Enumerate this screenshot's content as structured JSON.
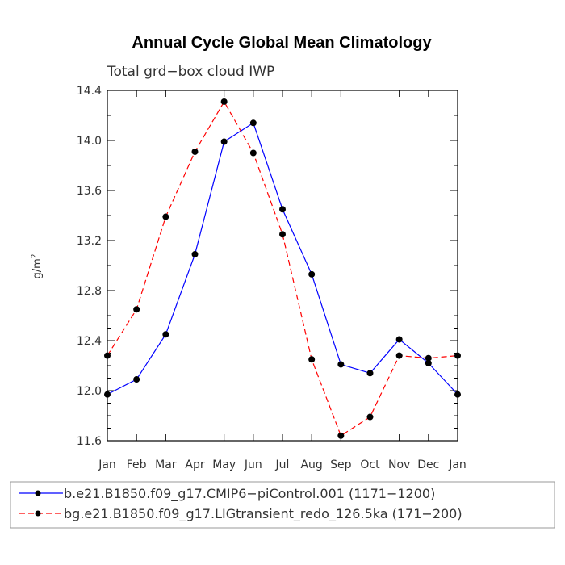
{
  "chart_data": {
    "type": "line",
    "title": "Annual Cycle Global Mean Climatology",
    "subtitle": "Total grd−box cloud IWP",
    "ylabel": "g/m",
    "ylabel_superscript": "2",
    "xlabel": "",
    "categories": [
      "Jan",
      "Feb",
      "Mar",
      "Apr",
      "May",
      "Jun",
      "Jul",
      "Aug",
      "Sep",
      "Oct",
      "Nov",
      "Dec",
      "Jan"
    ],
    "ylim": [
      11.6,
      14.4
    ],
    "yticks": [
      11.6,
      12.0,
      12.4,
      12.8,
      13.2,
      13.6,
      14.0,
      14.4
    ],
    "ytick_labels": [
      "11.6",
      "12.0",
      "12.4",
      "12.8",
      "13.2",
      "13.6",
      "14.0",
      "14.4"
    ],
    "series": [
      {
        "name": "b.e21.B1850.f09_g17.CMIP6−piControl.001 (1171−1200)",
        "color": "#0000ff",
        "dash": "solid",
        "values": [
          11.97,
          12.09,
          12.45,
          13.09,
          13.99,
          14.14,
          13.45,
          12.93,
          12.21,
          12.14,
          12.41,
          12.22,
          11.97
        ]
      },
      {
        "name": "bg.e21.B1850.f09_g17.LIGtransient_redo_126.5ka (171−200)",
        "color": "#ff0000",
        "dash": "dashed",
        "values": [
          12.28,
          12.65,
          13.39,
          13.91,
          14.31,
          13.9,
          13.25,
          12.25,
          11.64,
          11.79,
          12.28,
          12.26,
          12.28
        ]
      }
    ],
    "legend_position": "bottom"
  }
}
